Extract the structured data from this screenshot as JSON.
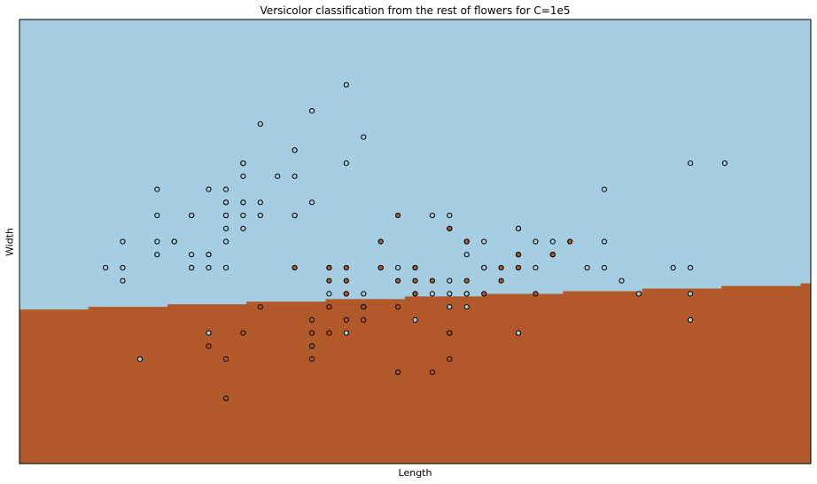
{
  "chart_data": {
    "type": "scatter",
    "title": "Versicolor classification from the rest of flowers for C=1e5",
    "xlabel": "Length",
    "ylabel": "Width",
    "xticks": [],
    "yticks": [],
    "xlim": [
      3.8,
      8.4
    ],
    "ylim": [
      1.5,
      4.9
    ],
    "grid": false,
    "legend": "none",
    "colors": {
      "region_other": "#a6cee3",
      "region_versicolor": "#b15928",
      "point_other": "#a6cee3",
      "point_versicolor": "#b15928",
      "edge": "#000000"
    },
    "decision_boundary": {
      "x": [
        3.8,
        4.2,
        4.2,
        4.66,
        4.66,
        5.12,
        5.12,
        5.58,
        5.58,
        6.04,
        6.04,
        6.5,
        6.5,
        6.96,
        6.96,
        7.42,
        7.42,
        7.88,
        7.88,
        8.34,
        8.34,
        8.4
      ],
      "y": [
        2.68,
        2.68,
        2.7,
        2.7,
        2.72,
        2.72,
        2.74,
        2.74,
        2.76,
        2.76,
        2.78,
        2.78,
        2.8,
        2.8,
        2.82,
        2.82,
        2.84,
        2.84,
        2.86,
        2.86,
        2.88,
        2.88
      ]
    },
    "series": [
      {
        "name": "",
        "class": "other",
        "points": [
          [
            5.1,
            3.5
          ],
          [
            4.9,
            3.0
          ],
          [
            4.7,
            3.2
          ],
          [
            4.6,
            3.1
          ],
          [
            5.0,
            3.6
          ],
          [
            5.4,
            3.9
          ],
          [
            4.6,
            3.4
          ],
          [
            5.0,
            3.4
          ],
          [
            4.4,
            2.9
          ],
          [
            4.9,
            3.1
          ],
          [
            5.4,
            3.7
          ],
          [
            4.8,
            3.4
          ],
          [
            4.8,
            3.0
          ],
          [
            4.3,
            3.0
          ],
          [
            5.8,
            4.0
          ],
          [
            5.7,
            4.4
          ],
          [
            5.4,
            3.9
          ],
          [
            5.1,
            3.5
          ],
          [
            5.7,
            3.8
          ],
          [
            5.1,
            3.8
          ],
          [
            5.4,
            3.4
          ],
          [
            5.1,
            3.7
          ],
          [
            4.6,
            3.6
          ],
          [
            5.1,
            3.3
          ],
          [
            4.8,
            3.4
          ],
          [
            5.0,
            3.0
          ],
          [
            5.0,
            3.4
          ],
          [
            5.2,
            3.5
          ],
          [
            5.2,
            3.4
          ],
          [
            4.7,
            3.2
          ],
          [
            4.8,
            3.1
          ],
          [
            5.4,
            3.4
          ],
          [
            5.2,
            4.1
          ],
          [
            5.5,
            4.2
          ],
          [
            4.9,
            3.1
          ],
          [
            5.0,
            3.2
          ],
          [
            5.5,
            3.5
          ],
          [
            4.9,
            3.6
          ],
          [
            4.4,
            3.0
          ],
          [
            5.1,
            3.4
          ],
          [
            5.0,
            3.5
          ],
          [
            4.5,
            2.3
          ],
          [
            4.4,
            3.2
          ],
          [
            5.0,
            3.5
          ],
          [
            5.1,
            3.8
          ],
          [
            4.8,
            3.0
          ],
          [
            5.1,
            3.8
          ],
          [
            4.6,
            3.2
          ],
          [
            5.3,
            3.7
          ],
          [
            5.0,
            3.3
          ],
          [
            6.3,
            3.3
          ],
          [
            5.8,
            2.7
          ],
          [
            7.1,
            3.0
          ],
          [
            6.3,
            2.9
          ],
          [
            6.5,
            3.0
          ],
          [
            7.6,
            3.0
          ],
          [
            4.9,
            2.5
          ],
          [
            7.3,
            2.9
          ],
          [
            6.7,
            2.5
          ],
          [
            7.2,
            3.6
          ],
          [
            6.5,
            3.2
          ],
          [
            6.4,
            2.7
          ],
          [
            6.8,
            3.0
          ],
          [
            5.7,
            2.5
          ],
          [
            5.8,
            2.8
          ],
          [
            6.4,
            3.2
          ],
          [
            6.5,
            3.0
          ],
          [
            7.7,
            3.8
          ],
          [
            7.7,
            2.6
          ],
          [
            6.0,
            2.2
          ],
          [
            6.9,
            3.2
          ],
          [
            5.6,
            2.8
          ],
          [
            7.7,
            2.8
          ],
          [
            6.3,
            2.7
          ],
          [
            6.7,
            3.3
          ],
          [
            7.2,
            3.2
          ],
          [
            6.2,
            2.8
          ],
          [
            6.1,
            3.0
          ],
          [
            6.4,
            2.8
          ],
          [
            7.2,
            3.0
          ],
          [
            7.4,
            2.8
          ],
          [
            7.9,
            3.8
          ],
          [
            6.4,
            2.8
          ],
          [
            6.3,
            2.8
          ],
          [
            6.1,
            2.6
          ],
          [
            7.7,
            3.0
          ],
          [
            6.3,
            3.4
          ],
          [
            6.4,
            3.1
          ],
          [
            6.0,
            3.0
          ],
          [
            6.9,
            3.1
          ],
          [
            6.7,
            3.1
          ],
          [
            6.9,
            3.1
          ],
          [
            5.8,
            2.7
          ],
          [
            6.8,
            3.2
          ],
          [
            6.7,
            3.3
          ],
          [
            6.7,
            3.0
          ],
          [
            6.3,
            2.5
          ],
          [
            6.5,
            3.0
          ],
          [
            6.2,
            3.4
          ],
          [
            5.9,
            3.0
          ]
        ]
      },
      {
        "name": "",
        "class": "versicolor",
        "points": [
          [
            7.0,
            3.2
          ],
          [
            6.4,
            3.2
          ],
          [
            6.9,
            3.1
          ],
          [
            5.5,
            2.3
          ],
          [
            6.5,
            2.8
          ],
          [
            5.7,
            2.8
          ],
          [
            6.3,
            3.3
          ],
          [
            4.9,
            2.4
          ],
          [
            6.6,
            2.9
          ],
          [
            5.2,
            2.7
          ],
          [
            5.0,
            2.0
          ],
          [
            5.9,
            3.0
          ],
          [
            6.0,
            2.2
          ],
          [
            6.1,
            2.9
          ],
          [
            5.6,
            2.9
          ],
          [
            6.7,
            3.1
          ],
          [
            5.6,
            3.0
          ],
          [
            5.8,
            2.7
          ],
          [
            6.2,
            2.2
          ],
          [
            5.6,
            2.5
          ],
          [
            5.9,
            3.2
          ],
          [
            6.1,
            2.8
          ],
          [
            6.3,
            2.5
          ],
          [
            6.1,
            2.8
          ],
          [
            6.4,
            2.9
          ],
          [
            6.6,
            3.0
          ],
          [
            6.8,
            2.8
          ],
          [
            6.7,
            3.0
          ],
          [
            6.0,
            2.9
          ],
          [
            5.7,
            2.6
          ],
          [
            5.5,
            2.4
          ],
          [
            5.5,
            2.4
          ],
          [
            5.8,
            2.7
          ],
          [
            6.0,
            2.7
          ],
          [
            5.4,
            3.0
          ],
          [
            6.0,
            3.4
          ],
          [
            6.7,
            3.1
          ],
          [
            6.3,
            2.3
          ],
          [
            5.6,
            3.0
          ],
          [
            5.5,
            2.5
          ],
          [
            5.5,
            2.6
          ],
          [
            6.1,
            3.0
          ],
          [
            5.8,
            2.6
          ],
          [
            5.0,
            2.3
          ],
          [
            5.6,
            2.7
          ],
          [
            5.7,
            3.0
          ],
          [
            5.7,
            2.9
          ],
          [
            6.2,
            2.9
          ],
          [
            5.1,
            2.5
          ],
          [
            5.7,
            2.8
          ]
        ]
      }
    ]
  }
}
